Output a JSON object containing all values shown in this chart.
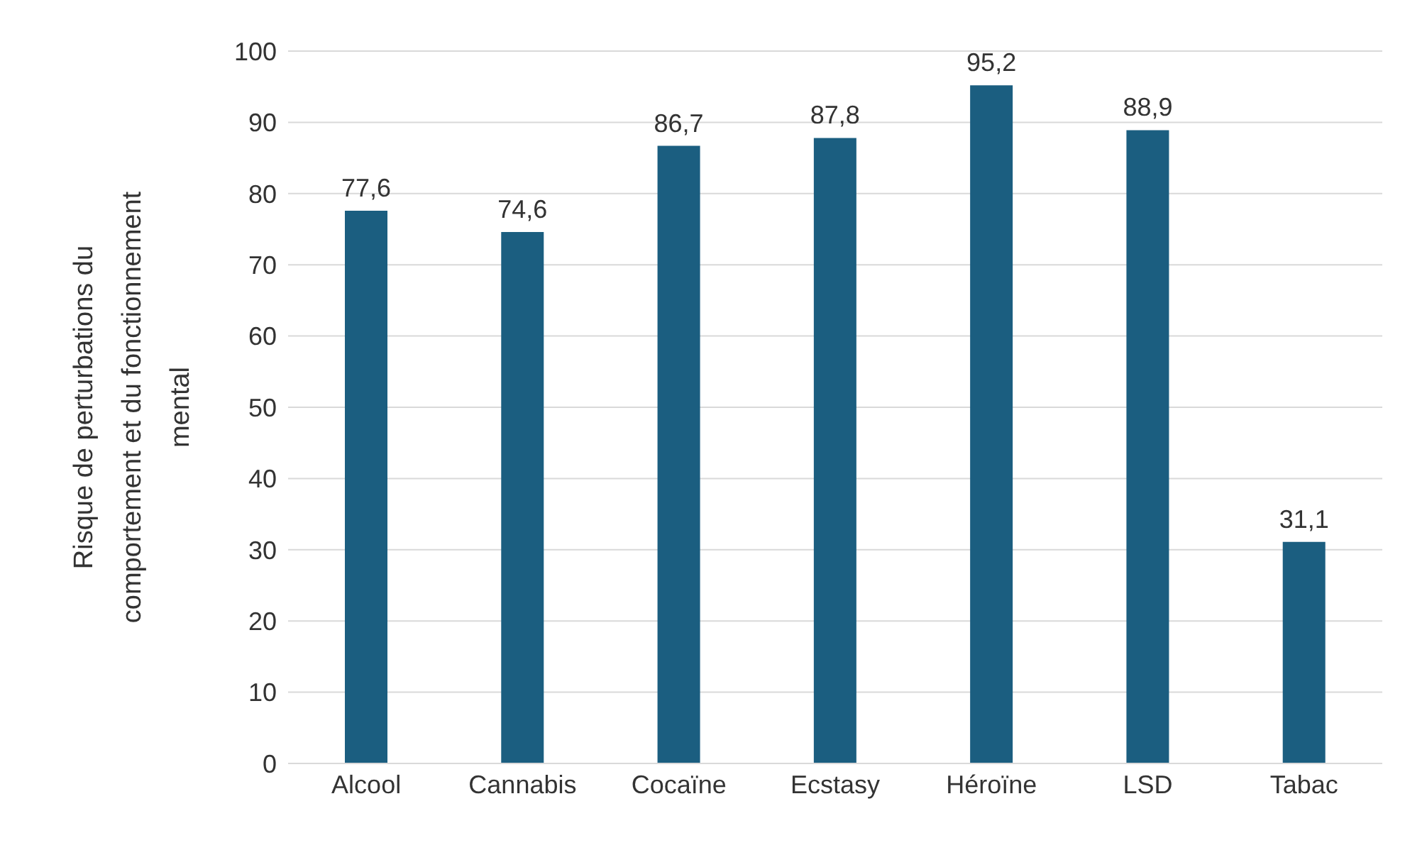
{
  "chart_data": {
    "type": "bar",
    "ylabel": "Risque de perturbations du\ncomportement et du fonctionnement\nmental",
    "categories": [
      "Alcool",
      "Cannabis",
      "Cocaïne",
      "Ecstasy",
      "Héroïne",
      "LSD",
      "Tabac"
    ],
    "values": [
      77.6,
      74.6,
      86.7,
      87.8,
      95.2,
      88.9,
      31.1
    ],
    "value_labels": [
      "77,6",
      "74,6",
      "86,7",
      "87,8",
      "95,2",
      "88,9",
      "31,1"
    ],
    "color": "#1b5e80",
    "ylim": [
      0,
      100
    ],
    "yticks": [
      0,
      10,
      20,
      30,
      40,
      50,
      60,
      70,
      80,
      90,
      100
    ],
    "grid": "y"
  }
}
